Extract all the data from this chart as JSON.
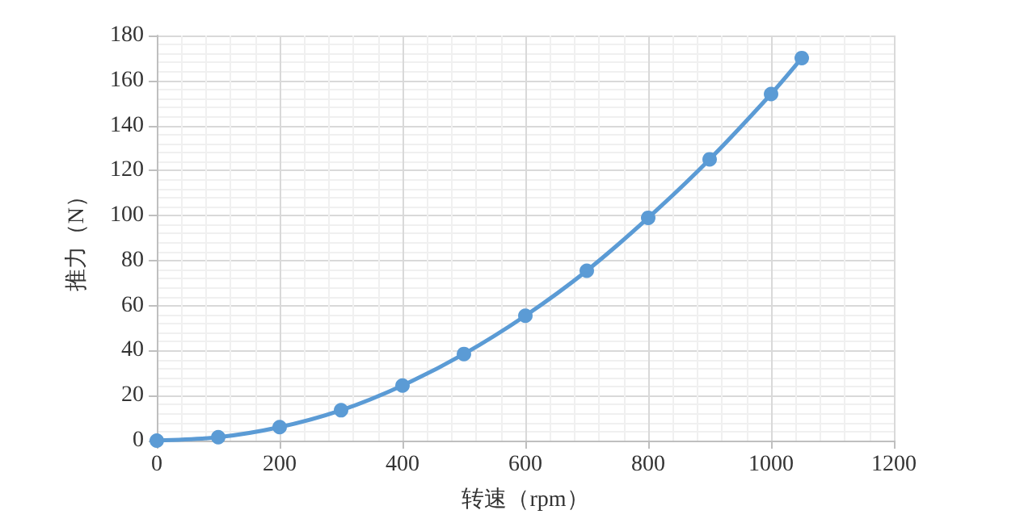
{
  "chart_data": {
    "type": "line",
    "xlabel": "转速（rpm）",
    "ylabel": "推力（N）",
    "x": [
      0,
      100,
      200,
      300,
      400,
      500,
      600,
      700,
      800,
      900,
      1000,
      1050
    ],
    "series": [
      {
        "color": "#5b9bd5",
        "values": [
          0,
          1.5,
          6,
          13.5,
          24.5,
          38.5,
          55.5,
          75.5,
          99,
          125,
          154,
          170
        ]
      }
    ],
    "xlim": [
      0,
      1200
    ],
    "xticks": [
      0,
      200,
      400,
      600,
      800,
      1000,
      1200
    ],
    "ylim": [
      0,
      180
    ],
    "yticks": [
      0,
      20,
      40,
      60,
      80,
      100,
      120,
      140,
      160,
      180
    ],
    "grid": true,
    "marker": "circle",
    "line_style": "solid"
  }
}
